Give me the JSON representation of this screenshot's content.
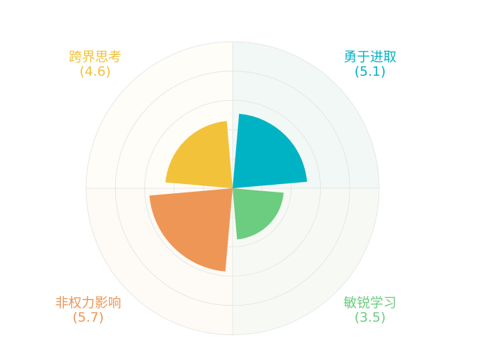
{
  "chart_data": {
    "type": "polar-bar",
    "title": "",
    "rmax": 10,
    "ring_values": [
      2,
      4,
      6,
      8,
      10
    ],
    "categories": [
      {
        "name": "勇于进取",
        "value": 5.1,
        "value_label": "(5.1)",
        "color": "#00B3C4",
        "quadrant_color": "#F1F8F5"
      },
      {
        "name": "敏锐学习",
        "value": 3.5,
        "value_label": "(3.5)",
        "color": "#6CCC7F",
        "quadrant_color": "#F7FAF4"
      },
      {
        "name": "非权力影响",
        "value": 5.7,
        "value_label": "(5.7)",
        "color": "#EE9656",
        "quadrant_color": "#FEFAF5"
      },
      {
        "name": "跨界思考",
        "value": 4.6,
        "value_label": "(4.6)",
        "color": "#F2C23A",
        "quadrant_color": "#FFFDF8"
      }
    ],
    "grid_color": "#E6E6E6"
  }
}
